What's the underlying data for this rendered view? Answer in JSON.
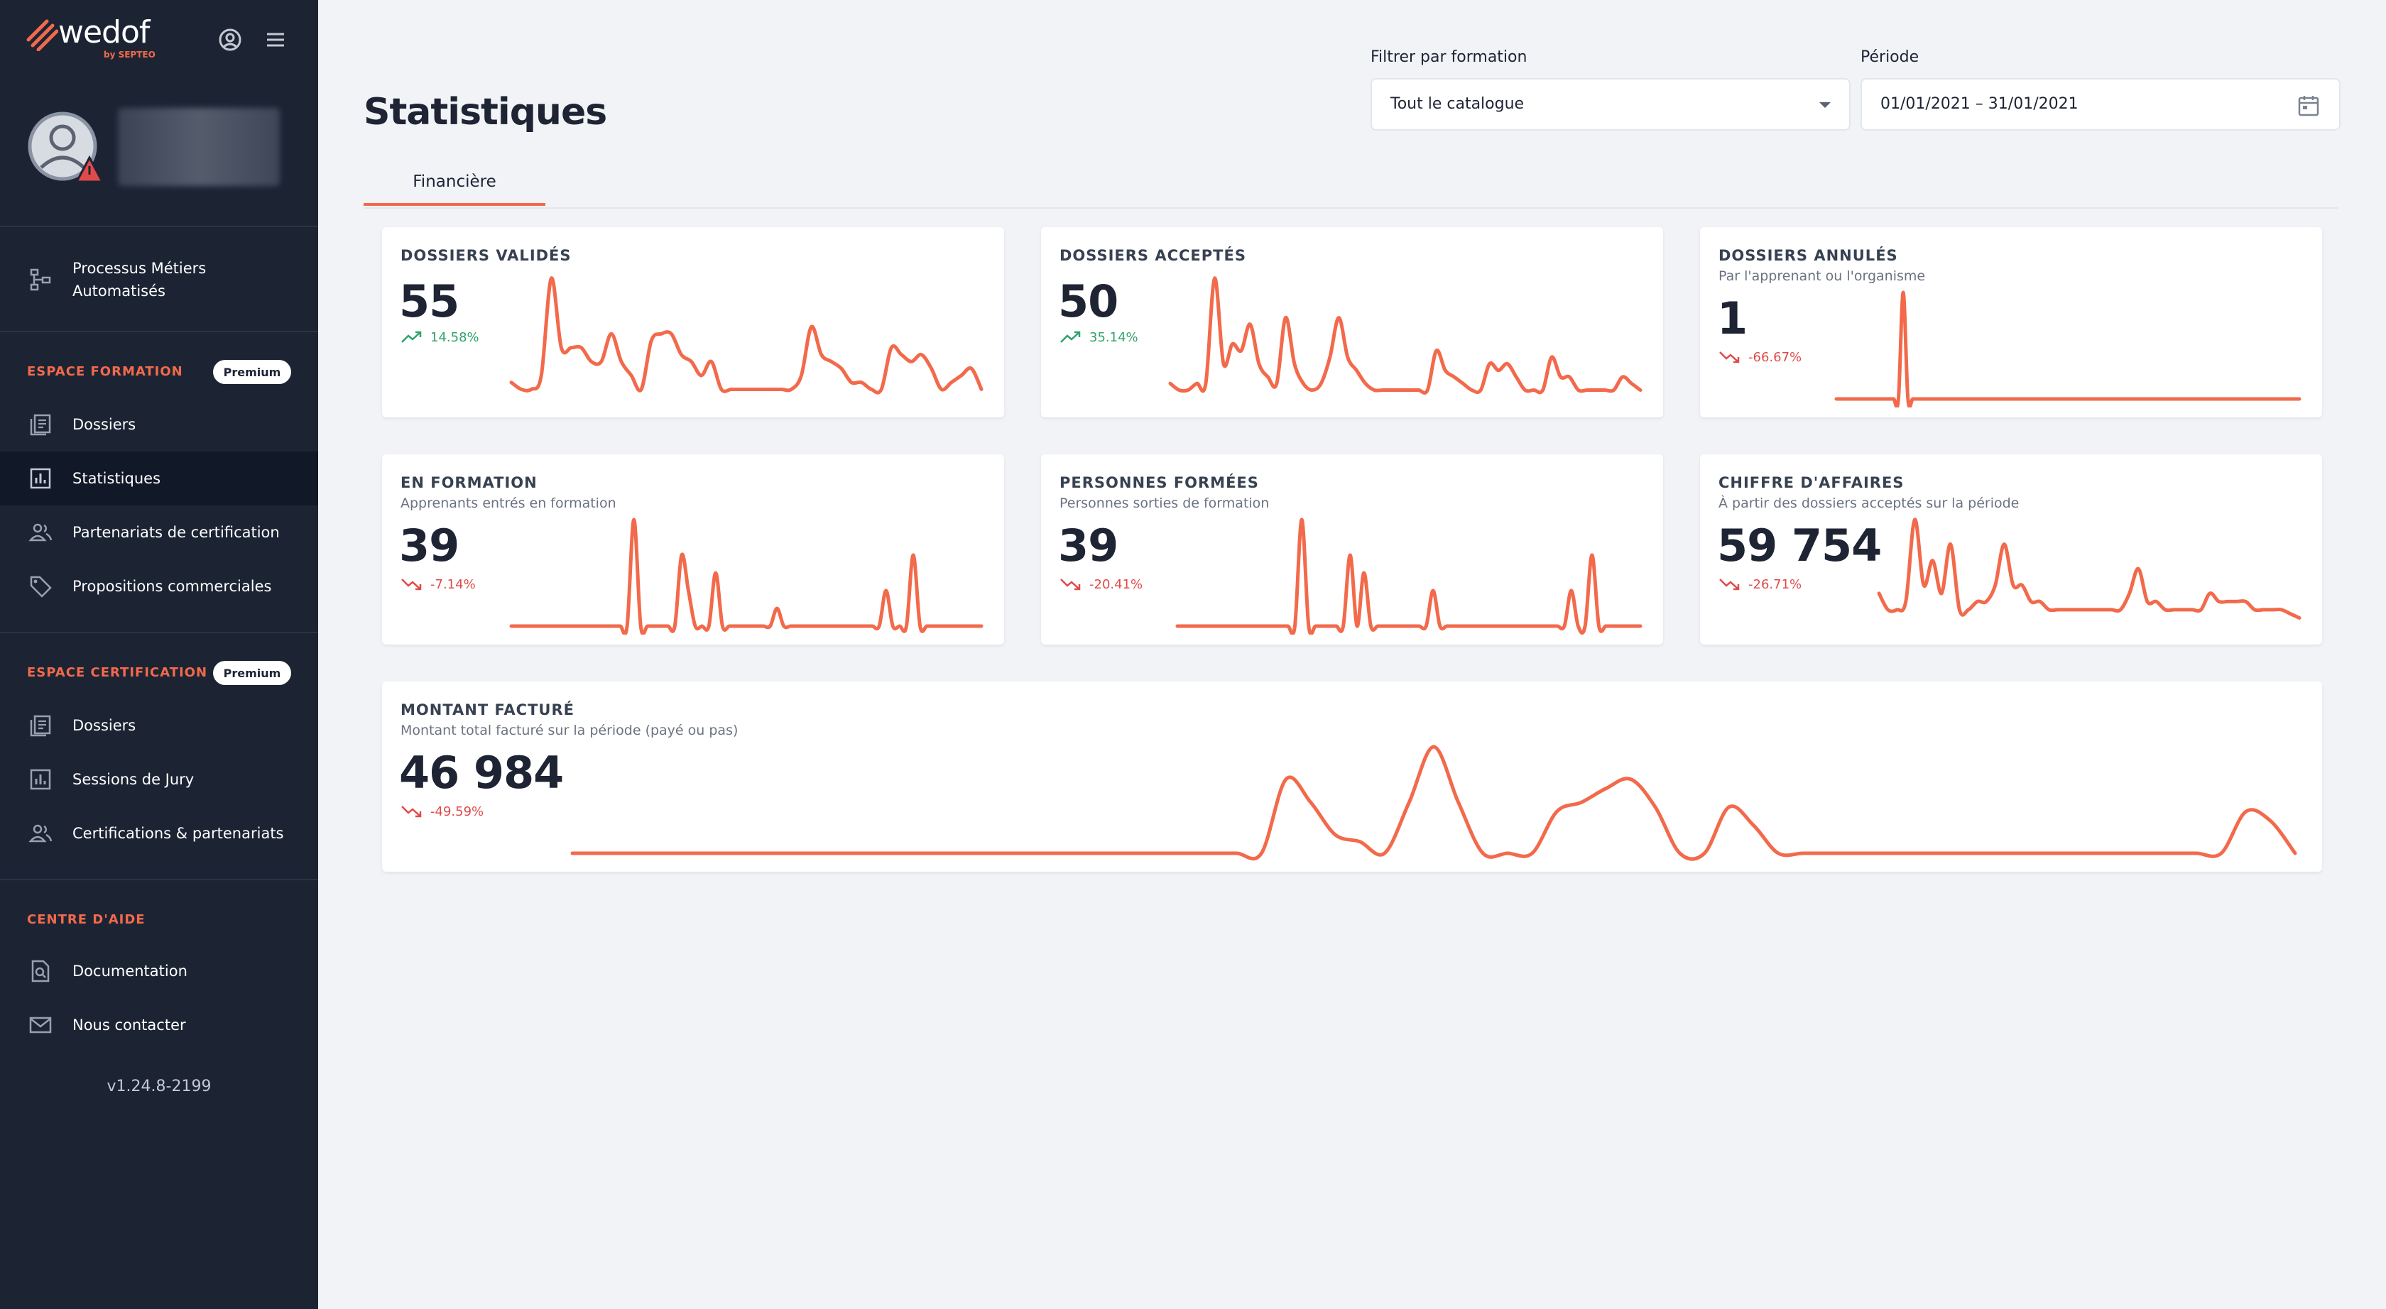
{
  "app": {
    "logo_text": "wedof",
    "logo_by": "by SEPTEO",
    "version": "v1.24.8-2199"
  },
  "sidebar": {
    "top_items": [
      {
        "label_line1": "Processus Métiers",
        "label_line2": "Automatisés",
        "icon": "workflow-icon"
      }
    ],
    "formation": {
      "title": "ESPACE FORMATION",
      "badge": "Premium",
      "items": [
        {
          "label": "Dossiers",
          "icon": "document-stack-icon"
        },
        {
          "label": "Statistiques",
          "icon": "bar-chart-icon",
          "active": true
        },
        {
          "label": "Partenariats de certification",
          "icon": "people-icon"
        },
        {
          "label": "Propositions commerciales",
          "icon": "tag-icon"
        }
      ]
    },
    "certification": {
      "title": "ESPACE CERTIFICATION",
      "badge": "Premium",
      "items": [
        {
          "label": "Dossiers",
          "icon": "document-stack-icon"
        },
        {
          "label": "Sessions de Jury",
          "icon": "bar-chart-icon"
        },
        {
          "label": "Certifications & partenariats",
          "icon": "people-icon"
        }
      ]
    },
    "help": {
      "title": "CENTRE D'AIDE",
      "items": [
        {
          "label": "Documentation",
          "icon": "doc-search-icon"
        },
        {
          "label": "Nous contacter",
          "icon": "mail-icon"
        }
      ]
    }
  },
  "header": {
    "title": "Statistiques",
    "filter_label": "Filtrer par formation",
    "filter_value": "Tout le catalogue",
    "period_label": "Période",
    "period_value": "01/01/2021 – 31/01/2021"
  },
  "tabs": [
    {
      "label": "Financière",
      "active": true
    }
  ],
  "colors": {
    "accent": "#f26a4b",
    "sidebar_bg": "#1c2434",
    "trend_up": "#2fa36b",
    "trend_down": "#e04a4a"
  },
  "cards": [
    {
      "title": "DOSSIERS VALIDÉS",
      "subtitle": "",
      "value": "55",
      "trend": "14.58%",
      "direction": "up",
      "series": [
        3,
        2,
        2,
        4,
        18,
        8,
        8,
        8,
        6,
        6,
        10,
        6,
        4,
        2,
        9,
        10,
        10,
        7,
        6,
        4,
        6,
        2,
        2,
        2,
        2,
        2,
        2,
        2,
        2,
        4,
        11,
        7,
        6,
        5,
        3,
        3,
        2,
        2,
        8,
        7,
        6,
        7,
        5,
        2,
        3,
        4,
        5,
        2
      ]
    },
    {
      "title": "DOSSIERS ACCEPTÉS",
      "subtitle": "",
      "value": "50",
      "trend": "35.14%",
      "direction": "up",
      "series": [
        3,
        2,
        2,
        3,
        3,
        19,
        6,
        9,
        8,
        12,
        6,
        4,
        3,
        13,
        6,
        3,
        2,
        3,
        7,
        13,
        7,
        5,
        3,
        2,
        2,
        2,
        2,
        2,
        2,
        2,
        8,
        5,
        4,
        3,
        2,
        2,
        6,
        5,
        6,
        4,
        2,
        2,
        2,
        7,
        4,
        4,
        2,
        2,
        2,
        2,
        2,
        4,
        3,
        2
      ]
    },
    {
      "title": "DOSSIERS ANNULÉS",
      "subtitle": "Par l'apprenant ou l'organisme",
      "value": "1",
      "trend": "-66.67%",
      "direction": "down",
      "series": [
        0,
        0,
        0,
        0,
        0,
        0,
        0,
        0,
        0,
        0,
        0,
        0,
        0,
        0,
        1,
        0,
        0,
        0,
        0,
        0,
        0,
        0,
        0,
        0,
        0,
        0,
        0,
        0,
        0,
        0,
        0,
        0,
        0,
        0,
        0,
        0,
        0,
        0,
        0,
        0,
        0,
        0,
        0,
        0,
        0,
        0,
        0,
        0,
        0,
        0,
        0,
        0,
        0,
        0,
        0,
        0,
        0,
        0,
        0,
        0,
        0,
        0,
        0,
        0,
        0,
        0,
        0,
        0,
        0,
        0,
        0,
        0,
        0,
        0,
        0,
        0,
        0,
        0,
        0,
        0,
        0,
        0,
        0,
        0,
        0,
        0,
        0,
        0,
        0,
        0,
        0,
        0,
        0,
        0,
        0,
        0,
        0,
        0
      ]
    },
    {
      "title": "EN FORMATION",
      "subtitle": "Apprenants entrés en formation",
      "value": "39",
      "trend": "-7.14%",
      "direction": "down",
      "series": [
        0,
        0,
        0,
        0,
        0,
        0,
        0,
        0,
        0,
        0,
        0,
        0,
        0,
        0,
        0,
        0,
        0,
        0,
        6,
        0,
        0,
        0,
        0,
        0,
        0,
        4,
        2,
        0,
        0,
        0,
        3,
        0,
        0,
        0,
        0,
        0,
        0,
        0,
        0,
        1,
        0,
        0,
        0,
        0,
        0,
        0,
        0,
        0,
        0,
        0,
        0,
        0,
        0,
        0,
        0,
        2,
        0,
        0,
        0,
        4,
        0,
        0,
        0,
        0,
        0,
        0,
        0,
        0,
        0,
        0
      ]
    },
    {
      "title": "PERSONNES FORMÉES",
      "subtitle": "Personnes sorties de formation",
      "value": "39",
      "trend": "-20.41%",
      "direction": "down",
      "series": [
        0,
        0,
        0,
        0,
        0,
        0,
        0,
        0,
        0,
        0,
        0,
        0,
        0,
        0,
        0,
        0,
        0,
        0,
        6,
        0,
        0,
        0,
        0,
        0,
        0,
        4,
        0,
        3,
        0,
        0,
        0,
        0,
        0,
        0,
        0,
        0,
        0,
        2,
        0,
        0,
        0,
        0,
        0,
        0,
        0,
        0,
        0,
        0,
        0,
        0,
        0,
        0,
        0,
        0,
        0,
        0,
        0,
        2,
        0,
        0,
        4,
        0,
        0,
        0,
        0,
        0,
        0,
        0
      ]
    },
    {
      "title": "CHIFFRE D'AFFAIRES",
      "subtitle": "À partir des dossiers acceptés sur la période",
      "value": "59 754",
      "trend": "-26.71%",
      "direction": "down",
      "series": [
        4,
        2,
        2,
        3,
        13,
        5,
        8,
        4,
        10,
        2,
        2,
        3,
        3,
        5,
        10,
        5,
        5,
        3,
        3,
        2,
        2,
        2,
        2,
        2,
        2,
        2,
        2,
        2,
        4,
        7,
        3,
        3,
        2,
        2,
        2,
        2,
        2,
        4,
        3,
        3,
        3,
        3,
        2,
        2,
        2,
        2,
        1.5,
        1
      ]
    },
    {
      "title": "MONTANT FACTURÉ",
      "subtitle": "Montant total facturé sur la période (payé ou pas)",
      "value": "46 984",
      "trend": "-49.59%",
      "direction": "down",
      "series": [
        0,
        0,
        0,
        0,
        0,
        0,
        0,
        0,
        0,
        0,
        0,
        0,
        0,
        0,
        0,
        0,
        0,
        0,
        0,
        0,
        0,
        0,
        0,
        0,
        0,
        0,
        0,
        0,
        0,
        3.2,
        2.2,
        0.8,
        0.5,
        0,
        2.2,
        4.6,
        2.2,
        0,
        0,
        0,
        1.8,
        2.2,
        2.8,
        3.2,
        2,
        0,
        0,
        2,
        1.2,
        0,
        0,
        0,
        0,
        0,
        0,
        0,
        0,
        0,
        0,
        0,
        0,
        0,
        0,
        0,
        0,
        0,
        0,
        0,
        1.8,
        1.4,
        0
      ]
    }
  ]
}
